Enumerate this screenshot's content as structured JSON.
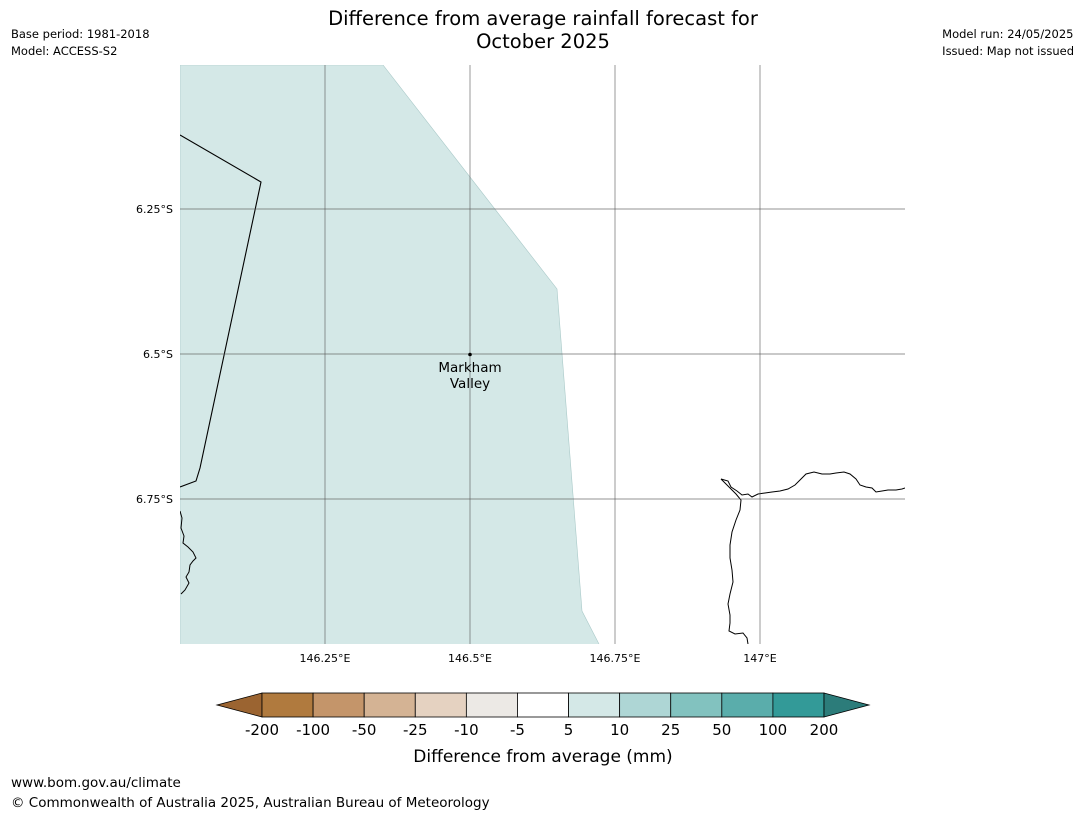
{
  "title": {
    "line1": "Difference from average rainfall forecast for",
    "line2": "October 2025"
  },
  "meta_left": {
    "base_period": "Base period: 1981-2018",
    "model": "Model: ACCESS-S2"
  },
  "meta_right": {
    "model_run": "Model run: 24/05/2025",
    "issued": "Issued: Map not issued"
  },
  "map": {
    "lat_labels": [
      "6.25°S",
      "6.5°S",
      "6.75°S"
    ],
    "lon_labels": [
      "146.25°E",
      "146.5°E",
      "146.75°E",
      "147°E"
    ],
    "place": {
      "name_line1": "Markham",
      "name_line2": "Valley"
    },
    "fill_color": "#d4e8e7"
  },
  "legend": {
    "title": "Difference from average (mm)",
    "ticks": [
      "-200",
      "-100",
      "-50",
      "-25",
      "-10",
      "-5",
      "5",
      "10",
      "25",
      "50",
      "100",
      "200"
    ],
    "colors": [
      "#9b6431",
      "#b07a3e",
      "#c4956a",
      "#d4b394",
      "#e5d2c1",
      "#ece9e5",
      "#ffffff",
      "#d4e8e7",
      "#aed6d5",
      "#82c2bf",
      "#5aadab",
      "#339a98",
      "#2c7c7a"
    ]
  },
  "footer": {
    "url": "www.bom.gov.au/climate",
    "copyright": "© Commonwealth of Australia 2025, Australian Bureau of Meteorology"
  }
}
